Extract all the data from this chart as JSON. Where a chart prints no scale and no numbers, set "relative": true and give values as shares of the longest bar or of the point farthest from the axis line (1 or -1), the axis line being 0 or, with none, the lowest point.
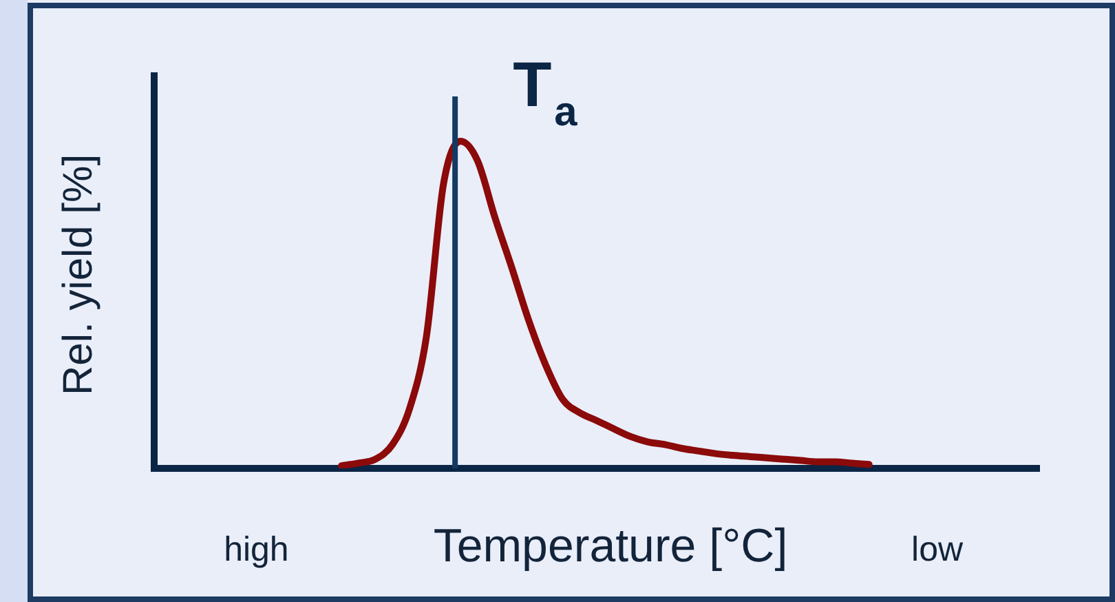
{
  "chart_data": {
    "type": "line",
    "relative": true,
    "xlabel": "Temperature [°C]",
    "ylabel": "Rel. yield [%]",
    "categories": [
      null,
      null,
      null,
      null,
      null,
      null,
      "high",
      null,
      null,
      null,
      null,
      null,
      null,
      null,
      null,
      null,
      null,
      null,
      null,
      null,
      null,
      null,
      null,
      null,
      null,
      null,
      null,
      null,
      null,
      null,
      null,
      null,
      null,
      null,
      null,
      null,
      null,
      null,
      null,
      null,
      null,
      null,
      null,
      null,
      null,
      null,
      "low",
      null,
      null,
      null,
      null,
      null,
      null
    ],
    "tick_labels": "x",
    "grid": false,
    "legend": false,
    "marker": "none",
    "line_style": "solid",
    "series": [
      {
        "color": "#8b0a0a",
        "values": [
          null,
          null,
          null,
          null,
          null,
          null,
          null,
          null,
          null,
          null,
          null,
          0.008,
          0.016,
          0.028,
          0.073,
          0.182,
          0.405,
          0.87,
          1,
          0.94,
          0.77,
          0.615,
          0.453,
          0.316,
          0.211,
          0.17,
          0.146,
          0.121,
          0.097,
          0.081,
          0.073,
          0.061,
          0.053,
          0.045,
          0.04,
          0.036,
          0.032,
          0.028,
          0.024,
          0.02,
          0.02,
          0.016,
          0.012,
          null,
          null,
          null,
          null,
          null,
          null,
          null,
          null,
          null,
          null
        ]
      }
    ],
    "annotations": [
      "T$_{a}$"
    ]
  }
}
